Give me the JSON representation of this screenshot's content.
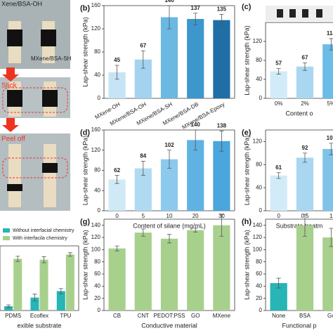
{
  "photo_panel": {
    "labels": [
      "Xene/BSA-OH",
      "MXene/BSA-SH",
      "Stick",
      "Peel off"
    ]
  },
  "chart_data": [
    {
      "type": "bar",
      "panel": "(b)",
      "ylabel": "Lap-shear strength (kPa)",
      "categories": [
        "MXene-OH",
        "MXene/BSA-OH",
        "MXene/BSA-SH",
        "MXene/BSA-DB",
        "MXene/BSA-Epoxy"
      ],
      "values": [
        45,
        67,
        140,
        137,
        135
      ],
      "errors": [
        12,
        15,
        20,
        10,
        10
      ],
      "colors": [
        "#c6e4f5",
        "#a3d3ef",
        "#6bb8e3",
        "#3d97cc",
        "#1f6fa6"
      ],
      "ylim": [
        0,
        160
      ],
      "yticks": [
        0,
        40,
        80,
        120,
        160
      ],
      "x_label_rotation": -30,
      "value_labels_shown": true
    },
    {
      "type": "bar",
      "panel": "(c)",
      "ylabel": "Lap-shear strength (kPa)",
      "xlabel": "Content o",
      "categories": [
        "0%",
        "2%",
        "5%"
      ],
      "values": [
        57,
        67,
        114
      ],
      "errors": [
        6,
        8,
        12
      ],
      "colors": [
        "#d2ebf8",
        "#a9d7f1",
        "#6bbce6"
      ],
      "ylim": [
        0,
        160
      ],
      "yticks": [
        0,
        40,
        80,
        120
      ],
      "value_labels_shown": true
    },
    {
      "type": "bar",
      "panel": "(d)",
      "ylabel": "Lap-shear strength (kPa)",
      "xlabel": "Content of silane (mg/mL)",
      "categories": [
        "0",
        "5",
        "10",
        "20",
        "30"
      ],
      "values": [
        62,
        84,
        102,
        140,
        138
      ],
      "errors": [
        8,
        14,
        18,
        20,
        20
      ],
      "colors": [
        "#cfe9f7",
        "#afdaf2",
        "#8ccaed",
        "#5fb2e2",
        "#4aa6dc"
      ],
      "ylim": [
        0,
        160
      ],
      "yticks": [
        0,
        40,
        80,
        120,
        160
      ],
      "value_labels_shown": true
    },
    {
      "type": "bar",
      "panel": "(e)",
      "ylabel": "Lap-shear strength (kPa)",
      "xlabel": "Substrate treatm",
      "categories": [
        "0",
        "0.5",
        "1"
      ],
      "values": [
        61,
        92,
        107
      ],
      "errors": [
        5,
        8,
        10
      ],
      "colors": [
        "#d2ebf8",
        "#a9d7f1",
        "#7fc3e9"
      ],
      "ylim": [
        0,
        140
      ],
      "yticks": [
        0,
        40,
        80,
        120
      ],
      "value_labels_shown": true
    },
    {
      "type": "grouped_bar",
      "xlabel": "exible substrate",
      "categories": [
        "PDMS",
        "Ecoflex",
        "TPU"
      ],
      "series": [
        {
          "name": "Without interfacial chemistry",
          "color": "#27b5b5",
          "values": [
            10,
            30,
            45
          ],
          "errors": [
            3,
            8,
            6
          ]
        },
        {
          "name": "With interfacila chemistry",
          "color": "#a8d08d",
          "values": [
            120,
            118,
            130
          ],
          "errors": [
            6,
            7,
            4
          ]
        }
      ],
      "ylim": [
        0,
        150
      ]
    },
    {
      "type": "bar",
      "panel": "(g)",
      "ylabel": "Lap-shear strength (kPa)",
      "xlabel": "Conductive material",
      "categories": [
        "CB",
        "CNT",
        "PEDOT:PSS",
        "GO",
        "MXene"
      ],
      "values": [
        102,
        128,
        118,
        132,
        140
      ],
      "errors": [
        4,
        6,
        7,
        3,
        18
      ],
      "color": "#a8d08d",
      "ylim": [
        0,
        150
      ],
      "yticks": [
        0,
        20,
        40,
        60,
        80,
        100,
        120,
        140
      ]
    },
    {
      "type": "bar",
      "panel": "(h)",
      "ylabel": "Lap-shear strength (kPa)",
      "xlabel": "Functional p",
      "categories": [
        "None",
        "BSA",
        "Go"
      ],
      "values": [
        45,
        140,
        120
      ],
      "errors": [
        8,
        18,
        15
      ],
      "colors": [
        "#27b5b5",
        "#a8d08d",
        "#a8d08d"
      ],
      "ylim": [
        0,
        150
      ],
      "yticks": [
        0,
        20,
        40,
        60,
        80,
        100,
        120,
        140
      ]
    }
  ]
}
